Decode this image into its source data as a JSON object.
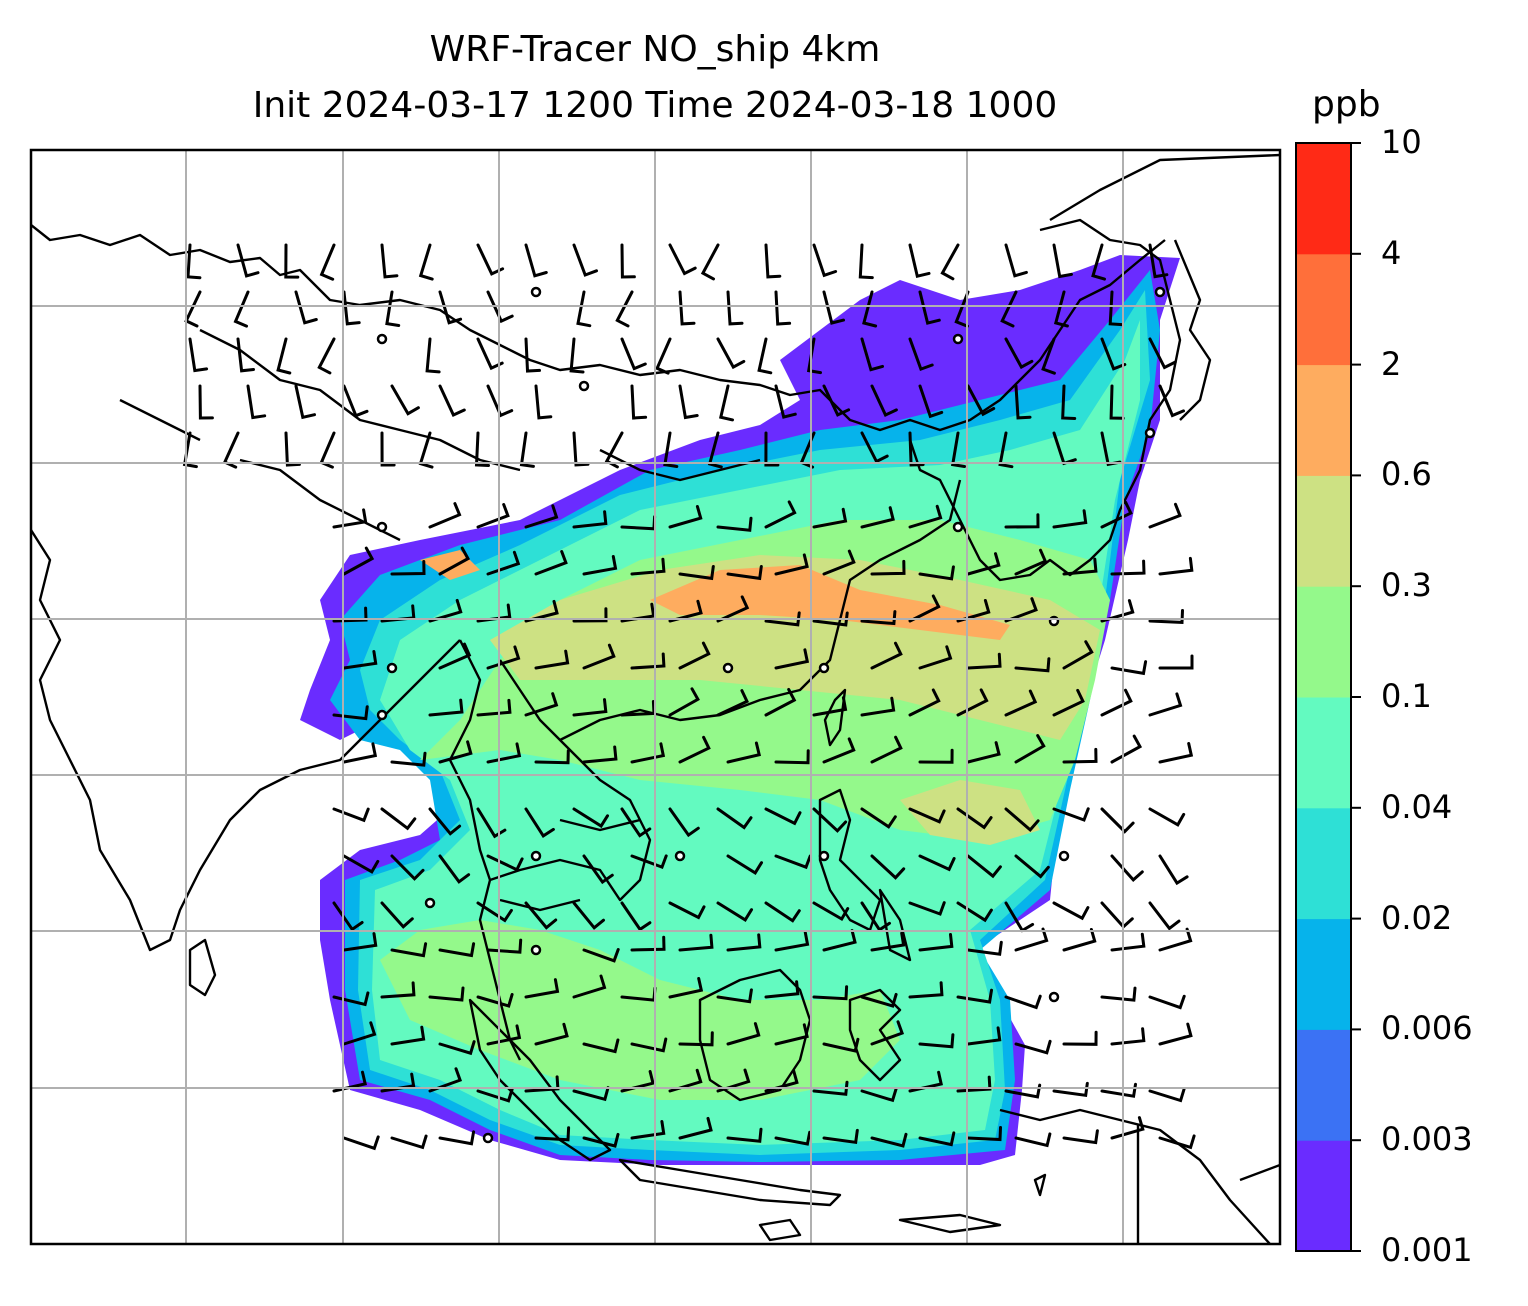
{
  "title": {
    "line1": "WRF-Tracer NO_ship 4km",
    "line2": "Init 2024-03-17 1200 Time 2024-03-18 1000"
  },
  "colorbar": {
    "unit": "ppb",
    "levels": [
      "0.001",
      "0.003",
      "0.006",
      "0.02",
      "0.04",
      "0.1",
      "0.3",
      "0.6",
      "2",
      "4",
      "10"
    ],
    "colors": [
      "#6a2cff",
      "#3b72f4",
      "#06b3eb",
      "#2ee0d6",
      "#63fac0",
      "#94f98b",
      "#cde183",
      "#feac5f",
      "#ff6f3a",
      "#ff2a16"
    ]
  },
  "map": {
    "variable": "NO_ship tracer concentration",
    "overlay": "wind barbs",
    "coastline_color": "#000000",
    "gridline_color": "#b0b0b0"
  }
}
